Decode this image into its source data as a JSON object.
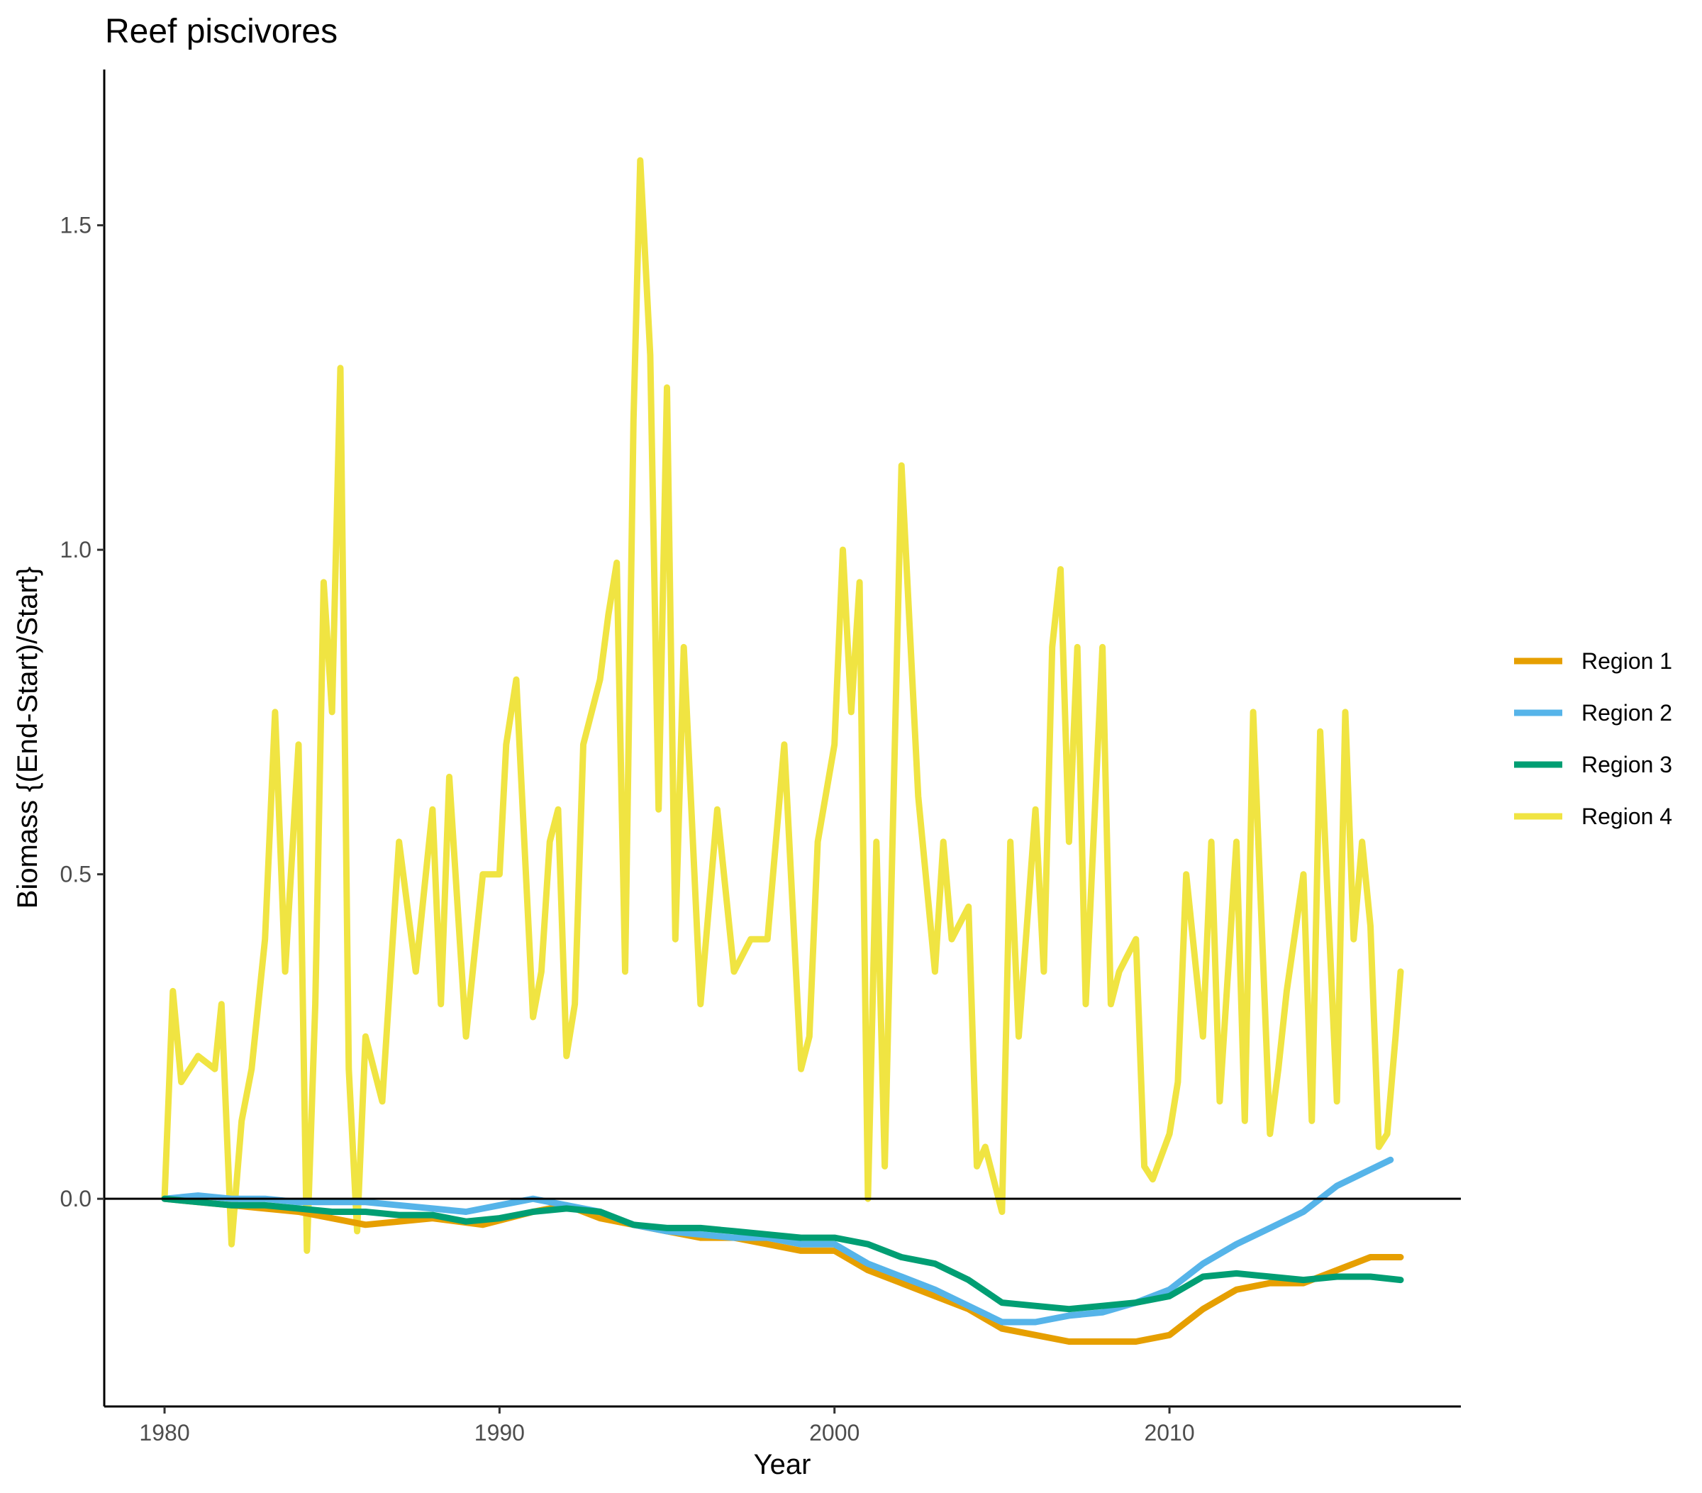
{
  "chart_data": {
    "type": "line",
    "title": "Reef piscivores",
    "xlabel": "Year",
    "ylabel": "Biomass {(End-Start)/Start}",
    "xlim": [
      1978.2,
      2018.7
    ],
    "ylim": [
      -0.32,
      1.74
    ],
    "x_ticks": [
      1980,
      1990,
      2000,
      2010
    ],
    "x_tick_labels": [
      "1980",
      "1990",
      "2000",
      "2010"
    ],
    "y_ticks": [
      0.0,
      0.5,
      1.0,
      1.5
    ],
    "y_tick_labels": [
      "0.0",
      "0.5",
      "1.0",
      "1.5"
    ],
    "reference_line": 0,
    "grid": false,
    "legend_position": "right",
    "series": [
      {
        "name": "Region 1",
        "color": "#E69F00",
        "x": [
          1980.0,
          1982.0,
          1984.0,
          1986.0,
          1988.0,
          1989.5,
          1991.0,
          1992.0,
          1993.0,
          1994.0,
          1995.0,
          1996.0,
          1997.0,
          1998.0,
          1999.0,
          2000.0,
          2001.0,
          2002.0,
          2003.0,
          2004.0,
          2005.0,
          2006.0,
          2007.0,
          2008.0,
          2009.0,
          2010.0,
          2011.0,
          2012.0,
          2013.0,
          2014.0,
          2015.0,
          2016.0,
          2016.9
        ],
        "y": [
          0.0,
          -0.01,
          -0.02,
          -0.04,
          -0.03,
          -0.04,
          -0.02,
          -0.01,
          -0.03,
          -0.04,
          -0.05,
          -0.06,
          -0.06,
          -0.07,
          -0.08,
          -0.08,
          -0.11,
          -0.13,
          -0.15,
          -0.17,
          -0.2,
          -0.21,
          -0.22,
          -0.22,
          -0.22,
          -0.21,
          -0.17,
          -0.14,
          -0.13,
          -0.13,
          -0.11,
          -0.09,
          -0.09
        ]
      },
      {
        "name": "Region 2",
        "color": "#56B4E9",
        "x": [
          1980.0,
          1981.0,
          1982.0,
          1983.0,
          1984.0,
          1985.0,
          1986.0,
          1987.0,
          1988.0,
          1989.0,
          1990.0,
          1991.0,
          1992.0,
          1993.0,
          1994.0,
          1995.0,
          1996.0,
          1997.0,
          1998.0,
          1999.0,
          2000.0,
          2001.0,
          2002.0,
          2003.0,
          2004.0,
          2005.0,
          2006.0,
          2007.0,
          2008.0,
          2009.0,
          2010.0,
          2011.0,
          2012.0,
          2013.0,
          2014.0,
          2015.0,
          2016.0,
          2016.6
        ],
        "y": [
          0.0,
          0.005,
          0.0,
          0.0,
          -0.005,
          -0.005,
          -0.005,
          -0.01,
          -0.015,
          -0.02,
          -0.01,
          0.0,
          -0.01,
          -0.02,
          -0.04,
          -0.05,
          -0.055,
          -0.06,
          -0.06,
          -0.07,
          -0.07,
          -0.1,
          -0.12,
          -0.14,
          -0.165,
          -0.19,
          -0.19,
          -0.18,
          -0.175,
          -0.16,
          -0.14,
          -0.1,
          -0.07,
          -0.045,
          -0.02,
          0.02,
          0.045,
          0.06
        ]
      },
      {
        "name": "Region 3",
        "color": "#009E73",
        "x": [
          1980.0,
          1981.0,
          1982.0,
          1983.0,
          1984.0,
          1985.0,
          1986.0,
          1987.0,
          1988.0,
          1989.0,
          1990.0,
          1991.0,
          1992.0,
          1993.0,
          1994.0,
          1995.0,
          1996.0,
          1997.0,
          1998.0,
          1999.0,
          2000.0,
          2001.0,
          2002.0,
          2003.0,
          2004.0,
          2005.0,
          2006.0,
          2007.0,
          2008.0,
          2009.0,
          2010.0,
          2011.0,
          2012.0,
          2013.0,
          2014.0,
          2015.0,
          2016.0,
          2016.9
        ],
        "y": [
          0.0,
          -0.005,
          -0.01,
          -0.01,
          -0.015,
          -0.02,
          -0.02,
          -0.025,
          -0.025,
          -0.035,
          -0.03,
          -0.02,
          -0.015,
          -0.02,
          -0.04,
          -0.045,
          -0.045,
          -0.05,
          -0.055,
          -0.06,
          -0.06,
          -0.07,
          -0.09,
          -0.1,
          -0.125,
          -0.16,
          -0.165,
          -0.17,
          -0.165,
          -0.16,
          -0.15,
          -0.12,
          -0.115,
          -0.12,
          -0.125,
          -0.12,
          -0.12,
          -0.125
        ]
      },
      {
        "name": "Region 4",
        "color": "#F0E442",
        "x": [
          1980.0,
          1980.25,
          1980.5,
          1981.0,
          1981.5,
          1981.7,
          1982.0,
          1982.3,
          1982.6,
          1983.0,
          1983.3,
          1983.6,
          1984.0,
          1984.25,
          1984.5,
          1984.75,
          1985.0,
          1985.25,
          1985.5,
          1985.75,
          1986.0,
          1986.5,
          1987.0,
          1987.25,
          1987.5,
          1988.0,
          1988.25,
          1988.5,
          1989.0,
          1989.5,
          1990.0,
          1990.2,
          1990.5,
          1991.0,
          1991.25,
          1991.5,
          1991.75,
          1992.0,
          1992.25,
          1992.5,
          1993.0,
          1993.25,
          1993.5,
          1993.75,
          1994.0,
          1994.2,
          1994.5,
          1994.75,
          1995.0,
          1995.25,
          1995.5,
          1996.0,
          1996.5,
          1997.0,
          1997.5,
          1998.0,
          1998.5,
          1999.0,
          1999.25,
          1999.5,
          2000.0,
          2000.25,
          2000.5,
          2000.75,
          2001.0,
          2001.25,
          2001.5,
          2002.0,
          2002.5,
          2003.0,
          2003.25,
          2003.5,
          2004.0,
          2004.25,
          2004.5,
          2005.0,
          2005.25,
          2005.5,
          2006.0,
          2006.25,
          2006.5,
          2006.75,
          2007.0,
          2007.25,
          2007.5,
          2008.0,
          2008.25,
          2008.5,
          2009.0,
          2009.25,
          2009.5,
          2010.0,
          2010.25,
          2010.5,
          2011.0,
          2011.25,
          2011.5,
          2012.0,
          2012.25,
          2012.5,
          2013.0,
          2013.25,
          2013.5,
          2014.0,
          2014.25,
          2014.5,
          2015.0,
          2015.25,
          2015.5,
          2015.75,
          2016.0,
          2016.25,
          2016.5,
          2016.75,
          2016.9
        ],
        "y": [
          0.0,
          0.32,
          0.18,
          0.22,
          0.2,
          0.3,
          -0.07,
          0.12,
          0.2,
          0.4,
          0.75,
          0.35,
          0.7,
          -0.08,
          0.3,
          0.95,
          0.75,
          1.28,
          0.2,
          -0.05,
          0.25,
          0.15,
          0.55,
          0.45,
          0.35,
          0.6,
          0.3,
          0.65,
          0.25,
          0.5,
          0.5,
          0.7,
          0.8,
          0.28,
          0.35,
          0.55,
          0.6,
          0.22,
          0.3,
          0.7,
          0.8,
          0.9,
          0.98,
          0.35,
          1.2,
          1.6,
          1.3,
          0.6,
          1.25,
          0.4,
          0.85,
          0.3,
          0.6,
          0.35,
          0.4,
          0.4,
          0.7,
          0.2,
          0.25,
          0.55,
          0.7,
          1.0,
          0.75,
          0.95,
          0.0,
          0.55,
          0.05,
          1.13,
          0.62,
          0.35,
          0.55,
          0.4,
          0.45,
          0.05,
          0.08,
          -0.02,
          0.55,
          0.25,
          0.6,
          0.35,
          0.85,
          0.97,
          0.55,
          0.85,
          0.3,
          0.85,
          0.3,
          0.35,
          0.4,
          0.05,
          0.03,
          0.1,
          0.18,
          0.5,
          0.25,
          0.55,
          0.15,
          0.55,
          0.12,
          0.75,
          0.1,
          0.2,
          0.32,
          0.5,
          0.12,
          0.72,
          0.15,
          0.75,
          0.4,
          0.55,
          0.42,
          0.08,
          0.1,
          0.25,
          0.35
        ]
      }
    ]
  },
  "legend": {
    "items": [
      {
        "label": "Region 1",
        "color": "#E69F00"
      },
      {
        "label": "Region 2",
        "color": "#56B4E9"
      },
      {
        "label": "Region 3",
        "color": "#009E73"
      },
      {
        "label": "Region 4",
        "color": "#F0E442"
      }
    ]
  }
}
